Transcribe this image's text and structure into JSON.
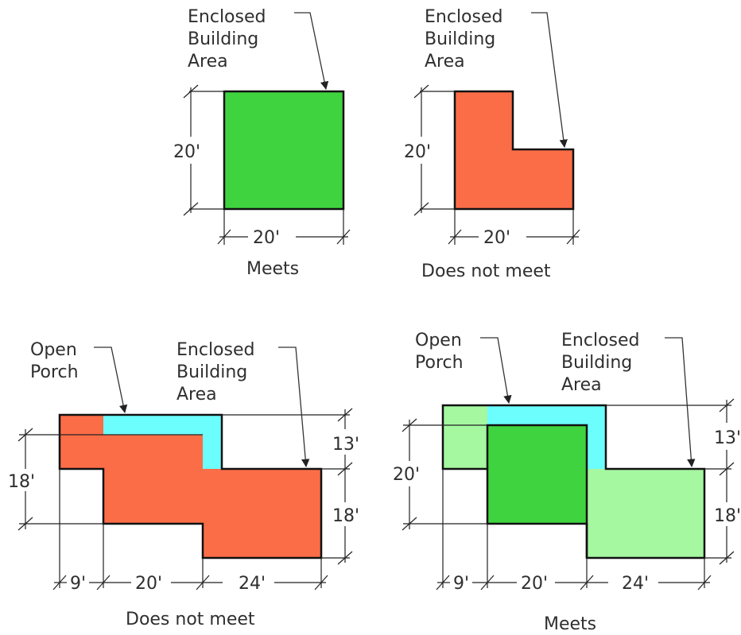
{
  "colors": {
    "meets_green": "#3fd43f",
    "light_green": "#a5f7a0",
    "fail_red": "#fb6d47",
    "porch_cyan": "#6cfdfd",
    "line": "#111111",
    "text": "#2f2f2f"
  },
  "diagrams": [
    {
      "caption": "Meets",
      "enclosed_label": [
        "Enclosed",
        "Building",
        "Area"
      ],
      "dims": {
        "height": "20'",
        "width": "20'"
      }
    },
    {
      "caption": "Does not meet",
      "enclosed_label": [
        "Enclosed",
        "Building",
        "Area"
      ],
      "dims": {
        "height": "20'",
        "width": "20'"
      }
    },
    {
      "caption": "Does not meet",
      "porch_label": [
        "Open",
        "Porch"
      ],
      "enclosed_label": [
        "Enclosed",
        "Building",
        "Area"
      ],
      "dims": {
        "left": "18'",
        "right_top": "13'",
        "right_bottom": "18'",
        "bottom": [
          "9'",
          "20'",
          "24'"
        ]
      }
    },
    {
      "caption": "Meets",
      "porch_label": [
        "Open",
        "Porch"
      ],
      "enclosed_label": [
        "Enclosed",
        "Building",
        "Area"
      ],
      "dims": {
        "left": "20'",
        "right_top": "13'",
        "right_bottom": "18'",
        "bottom": [
          "9'",
          "20'",
          "24'"
        ]
      }
    }
  ]
}
